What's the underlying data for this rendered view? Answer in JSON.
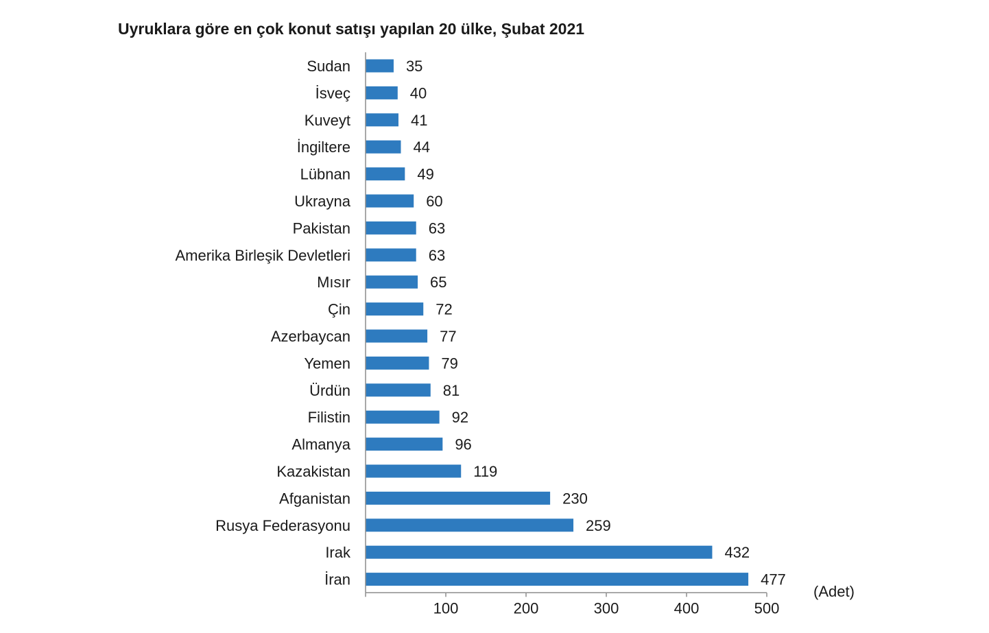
{
  "chart_data": {
    "type": "bar",
    "orientation": "horizontal",
    "title": "Uyruklara göre en çok konut satışı yapılan 20 ülke, Şubat 2021",
    "unit_label": "(Adet)",
    "categories": [
      "Sudan",
      "İsveç",
      "Kuveyt",
      "İngiltere",
      "Lübnan",
      "Ukrayna",
      "Pakistan",
      "Amerika Birleşik Devletleri",
      "Mısır",
      "Çin",
      "Azerbaycan",
      "Yemen",
      "Ürdün",
      "Filistin",
      "Almanya",
      "Kazakistan",
      "Afganistan",
      "Rusya Federasyonu",
      "Irak",
      "İran"
    ],
    "values": [
      35,
      40,
      41,
      44,
      49,
      60,
      63,
      63,
      65,
      72,
      77,
      79,
      81,
      92,
      96,
      119,
      230,
      259,
      432,
      477
    ],
    "xlim": [
      0,
      500
    ],
    "xticks": [
      100,
      200,
      300,
      400,
      500
    ],
    "bar_color": "#2e7bbf",
    "grid": false,
    "legend": "none"
  }
}
